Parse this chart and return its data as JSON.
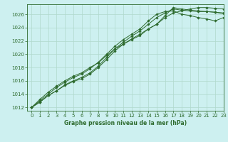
{
  "title": "Graphe pression niveau de la mer (hPa)",
  "bg_color": "#cdf0f0",
  "grid_color": "#b0d8cc",
  "line_color": "#2d6a2d",
  "xlim": [
    -0.5,
    23
  ],
  "ylim": [
    1011.5,
    1027.5
  ],
  "yticks": [
    1012,
    1014,
    1016,
    1018,
    1020,
    1022,
    1024,
    1026
  ],
  "xticks": [
    0,
    1,
    2,
    3,
    4,
    5,
    6,
    7,
    8,
    9,
    10,
    11,
    12,
    13,
    14,
    15,
    16,
    17,
    18,
    19,
    20,
    21,
    22,
    23
  ],
  "series": [
    [
      1012.0,
      1012.8,
      1013.8,
      1014.5,
      1015.3,
      1015.9,
      1016.3,
      1017.0,
      1018.0,
      1019.2,
      1020.5,
      1021.5,
      1022.3,
      1023.0,
      1023.8,
      1024.5,
      1025.8,
      1027.0,
      1026.8,
      1026.6,
      1026.5,
      1026.4,
      1026.3,
      1026.2
    ],
    [
      1012.0,
      1012.8,
      1013.8,
      1014.5,
      1015.4,
      1016.0,
      1016.5,
      1017.2,
      1018.2,
      1019.5,
      1020.8,
      1021.8,
      1022.7,
      1023.5,
      1024.5,
      1025.5,
      1026.2,
      1026.8,
      1026.6,
      1026.5,
      1026.4,
      1026.4,
      1026.3,
      1026.1
    ],
    [
      1012.0,
      1013.0,
      1014.0,
      1015.0,
      1015.8,
      1016.5,
      1017.0,
      1017.8,
      1018.8,
      1020.0,
      1021.2,
      1022.2,
      1023.0,
      1023.8,
      1025.0,
      1026.0,
      1026.4,
      1026.5,
      1026.0,
      1025.8,
      1025.5,
      1025.3,
      1025.0,
      1025.5
    ],
    [
      1012.0,
      1013.2,
      1014.3,
      1015.2,
      1016.0,
      1016.7,
      1017.2,
      1018.0,
      1018.7,
      1019.8,
      1020.8,
      1021.5,
      1022.2,
      1022.8,
      1023.8,
      1024.5,
      1025.5,
      1026.2,
      1026.5,
      1026.8,
      1027.0,
      1027.0,
      1026.9,
      1026.8
    ]
  ]
}
